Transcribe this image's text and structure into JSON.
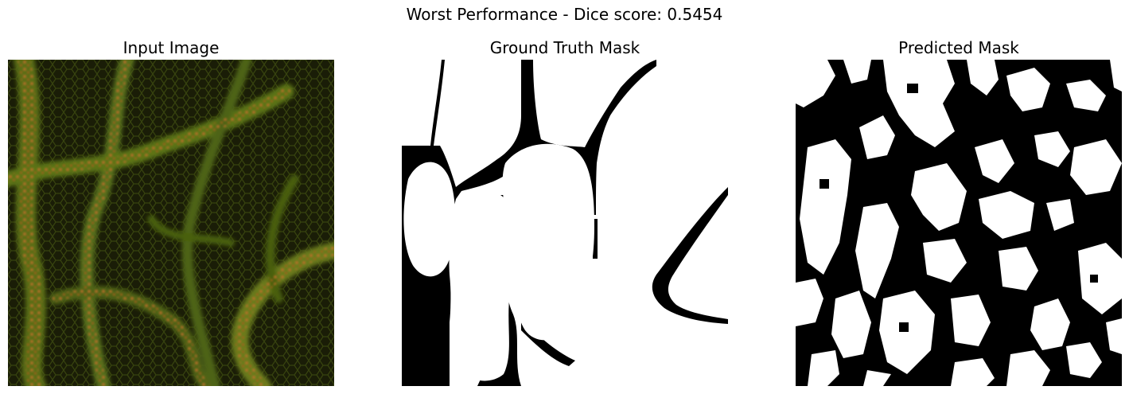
{
  "figure": {
    "title": "Worst Performance - Dice score: 0.5454"
  },
  "panels": [
    {
      "title": "Input Image"
    },
    {
      "title": "Ground Truth Mask"
    },
    {
      "title": "Predicted Mask"
    }
  ],
  "colors": {
    "background": "#ffffff",
    "tissue_dark": "#1b1e08",
    "tissue_green": "#4f6e12",
    "tissue_orange": "#b8681e",
    "mask_foreground": "#ffffff",
    "mask_background": "#000000"
  }
}
